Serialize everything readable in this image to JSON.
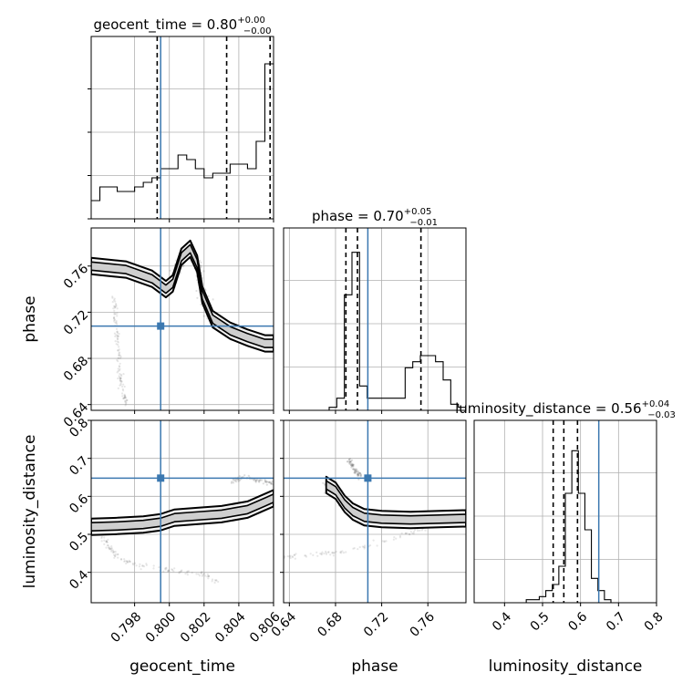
{
  "chart_data": {
    "type": "corner",
    "parameters": [
      "geocent_time",
      "phase",
      "luminosity_distance"
    ],
    "truth_color": "#3b78b0",
    "panels": {
      "geocent_time": {
        "range": [
          0.7955,
          0.806
        ],
        "ticks": [
          0.798,
          0.8,
          0.802,
          0.804,
          0.806
        ],
        "tick_labels": [
          "0.798",
          "0.800",
          "0.802",
          "0.804",
          "0.806"
        ],
        "label": "geocent_time",
        "title": {
          "main": "geocent_time = 0.80",
          "sup": "+0.00",
          "sub": "−0.00"
        },
        "truth": 0.7995,
        "quantiles": [
          0.7993,
          0.8033,
          0.8058
        ],
        "hist_edges_min": 0.7955,
        "hist_edges_max": 0.806,
        "hist": [
          4,
          7,
          7,
          6,
          6,
          7,
          8,
          9,
          11,
          11,
          14,
          13,
          11,
          9,
          10,
          10,
          12,
          12,
          11,
          17,
          34
        ],
        "hist_max": 40
      },
      "phase": {
        "range": [
          0.635,
          0.793
        ],
        "ticks": [
          0.64,
          0.68,
          0.72,
          0.76
        ],
        "tick_labels": [
          "0.64",
          "0.68",
          "0.72",
          "0.76"
        ],
        "label": "phase",
        "title": {
          "main": "phase = 0.70",
          "sup": "+0.05",
          "sub": "−0.01"
        },
        "truth": 0.708,
        "quantiles": [
          0.689,
          0.699,
          0.754
        ],
        "hist_edges_min": 0.635,
        "hist_edges_max": 0.793,
        "hist": [
          0,
          0,
          0,
          0,
          0,
          0,
          0.5,
          2,
          19,
          26,
          4,
          2,
          2,
          2,
          2,
          2,
          7,
          8,
          9,
          9,
          8,
          5,
          1,
          0.5
        ],
        "hist_max": 30
      },
      "luminosity_distance": {
        "range": [
          0.32,
          0.8
        ],
        "ticks": [
          0.4,
          0.5,
          0.6,
          0.7,
          0.8
        ],
        "tick_labels": [
          "0.4",
          "0.5",
          "0.6",
          "0.7",
          "0.8"
        ],
        "label": "luminosity_distance",
        "title": {
          "main": "luminosity_distance = 0.56",
          "sup": "+0.04",
          "sub": "−0.03"
        },
        "truth": 0.648,
        "quantiles": [
          0.528,
          0.556,
          0.592
        ],
        "hist_edges_min": 0.32,
        "hist_edges_max": 0.8,
        "hist": [
          0,
          0,
          0,
          0,
          0,
          0,
          0,
          0,
          0.5,
          0.5,
          1,
          2,
          3,
          6,
          18,
          25,
          18,
          12,
          4,
          2,
          0.5,
          0,
          0,
          0,
          0,
          0,
          0,
          0
        ],
        "hist_max": 30
      }
    },
    "scatter": {
      "phase_vs_geocent_time": {
        "x_param": "geocent_time",
        "y_param": "phase",
        "density_path": [
          [
            0.7955,
            0.76
          ],
          [
            0.7975,
            0.757
          ],
          [
            0.799,
            0.749
          ],
          [
            0.7998,
            0.74
          ],
          [
            0.8002,
            0.745
          ],
          [
            0.8007,
            0.768
          ],
          [
            0.8012,
            0.775
          ],
          [
            0.8016,
            0.762
          ],
          [
            0.8019,
            0.735
          ],
          [
            0.8025,
            0.714
          ],
          [
            0.8035,
            0.704
          ],
          [
            0.8045,
            0.698
          ],
          [
            0.8055,
            0.693
          ],
          [
            0.806,
            0.693
          ]
        ],
        "tail_path": [
          [
            0.7968,
            0.735
          ],
          [
            0.797,
            0.7
          ],
          [
            0.7972,
            0.66
          ],
          [
            0.7975,
            0.64
          ]
        ]
      },
      "luminosity_distance_vs_geocent_time": {
        "x_param": "geocent_time",
        "y_param": "luminosity_distance",
        "density_path": [
          [
            0.7955,
            0.52
          ],
          [
            0.797,
            0.522
          ],
          [
            0.7985,
            0.526
          ],
          [
            0.7995,
            0.532
          ],
          [
            0.8003,
            0.544
          ],
          [
            0.8015,
            0.548
          ],
          [
            0.803,
            0.553
          ],
          [
            0.8045,
            0.565
          ],
          [
            0.8055,
            0.585
          ],
          [
            0.806,
            0.595
          ]
        ],
        "tail_path": [
          [
            0.796,
            0.505
          ],
          [
            0.7965,
            0.47
          ],
          [
            0.797,
            0.44
          ],
          [
            0.798,
            0.42
          ],
          [
            0.8,
            0.405
          ],
          [
            0.802,
            0.395
          ],
          [
            0.8028,
            0.375
          ]
        ],
        "upper_path": [
          [
            0.8035,
            0.64
          ],
          [
            0.8045,
            0.65
          ],
          [
            0.8055,
            0.64
          ],
          [
            0.806,
            0.63
          ]
        ]
      },
      "luminosity_distance_vs_phase": {
        "x_param": "phase",
        "y_param": "luminosity_distance",
        "density_path": [
          [
            0.672,
            0.63
          ],
          [
            0.68,
            0.615
          ],
          [
            0.688,
            0.58
          ],
          [
            0.695,
            0.56
          ],
          [
            0.705,
            0.545
          ],
          [
            0.72,
            0.54
          ],
          [
            0.745,
            0.538
          ],
          [
            0.77,
            0.54
          ],
          [
            0.793,
            0.542
          ]
        ],
        "tail_path": [
          [
            0.635,
            0.44
          ],
          [
            0.66,
            0.445
          ],
          [
            0.69,
            0.455
          ],
          [
            0.72,
            0.48
          ],
          [
            0.75,
            0.51
          ],
          [
            0.775,
            0.53
          ],
          [
            0.793,
            0.54
          ]
        ],
        "upper_path": [
          [
            0.69,
            0.7
          ],
          [
            0.697,
            0.67
          ],
          [
            0.702,
            0.65
          ]
        ]
      }
    }
  }
}
